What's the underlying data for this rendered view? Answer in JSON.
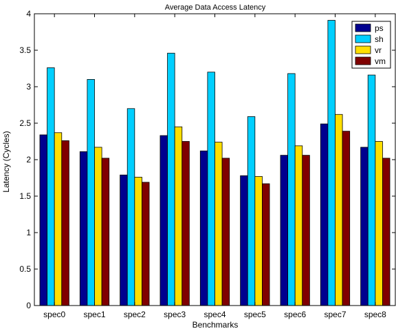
{
  "chart_data": {
    "type": "bar",
    "title": "Average Data Access Latency",
    "xlabel": "Benchmarks",
    "ylabel": "Latency (Cycles)",
    "ylim": [
      0,
      4
    ],
    "yticks": [
      0,
      0.5,
      1,
      1.5,
      2,
      2.5,
      3,
      3.5,
      4
    ],
    "ytick_labels": [
      "0",
      "0.5",
      "1",
      "1.5",
      "2",
      "2.5",
      "3",
      "3.5",
      "4"
    ],
    "grid": false,
    "legend_position": "top-right",
    "categories": [
      "spec0",
      "spec1",
      "spec2",
      "spec3",
      "spec4",
      "spec5",
      "spec6",
      "spec7",
      "spec8"
    ],
    "series": [
      {
        "name": "ps",
        "color": "#00008f",
        "values": [
          2.34,
          2.11,
          1.79,
          2.33,
          2.12,
          1.78,
          2.06,
          2.49,
          2.17
        ]
      },
      {
        "name": "sh",
        "color": "#00cfff",
        "values": [
          3.26,
          3.1,
          2.7,
          3.46,
          3.2,
          2.59,
          3.18,
          3.91,
          3.16
        ]
      },
      {
        "name": "vr",
        "color": "#ffdf00",
        "values": [
          2.37,
          2.17,
          1.76,
          2.45,
          2.24,
          1.77,
          2.19,
          2.62,
          2.25
        ]
      },
      {
        "name": "vm",
        "color": "#800000",
        "values": [
          2.26,
          2.02,
          1.69,
          2.25,
          2.02,
          1.67,
          2.06,
          2.39,
          2.02
        ]
      }
    ]
  }
}
